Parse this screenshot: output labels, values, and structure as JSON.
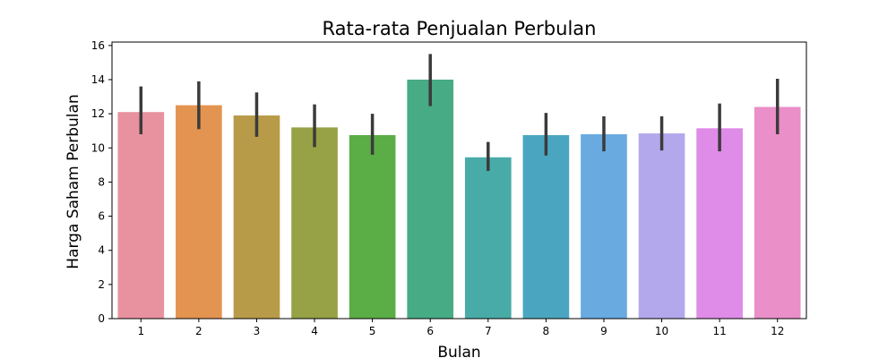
{
  "chart_data": {
    "type": "bar",
    "title": "Rata-rata Penjualan Perbulan",
    "xlabel": "Bulan",
    "ylabel": "Harga Saham Perbulan",
    "categories": [
      "1",
      "2",
      "3",
      "4",
      "5",
      "6",
      "7",
      "8",
      "9",
      "10",
      "11",
      "12"
    ],
    "values": [
      12.1,
      12.5,
      11.9,
      11.2,
      10.75,
      14.0,
      9.45,
      10.75,
      10.8,
      10.85,
      11.15,
      12.4
    ],
    "error_low": [
      10.8,
      11.1,
      10.65,
      10.05,
      9.6,
      12.45,
      8.65,
      9.55,
      9.8,
      9.85,
      9.8,
      10.8
    ],
    "error_high": [
      13.6,
      13.9,
      13.25,
      12.55,
      12.0,
      15.5,
      10.35,
      12.05,
      11.85,
      11.85,
      12.6,
      14.05
    ],
    "colors": [
      "#e8929f",
      "#e39450",
      "#b89b49",
      "#96a245",
      "#5bad46",
      "#47ab85",
      "#49aba8",
      "#4aa6c0",
      "#69aae0",
      "#b4a8ec",
      "#df8be8",
      "#ea8fc8"
    ],
    "error_color": "#3b3b3b",
    "ylim": [
      0,
      16.2
    ],
    "yticks": [
      0,
      2,
      4,
      6,
      8,
      10,
      12,
      14,
      16
    ],
    "grid": false
  }
}
